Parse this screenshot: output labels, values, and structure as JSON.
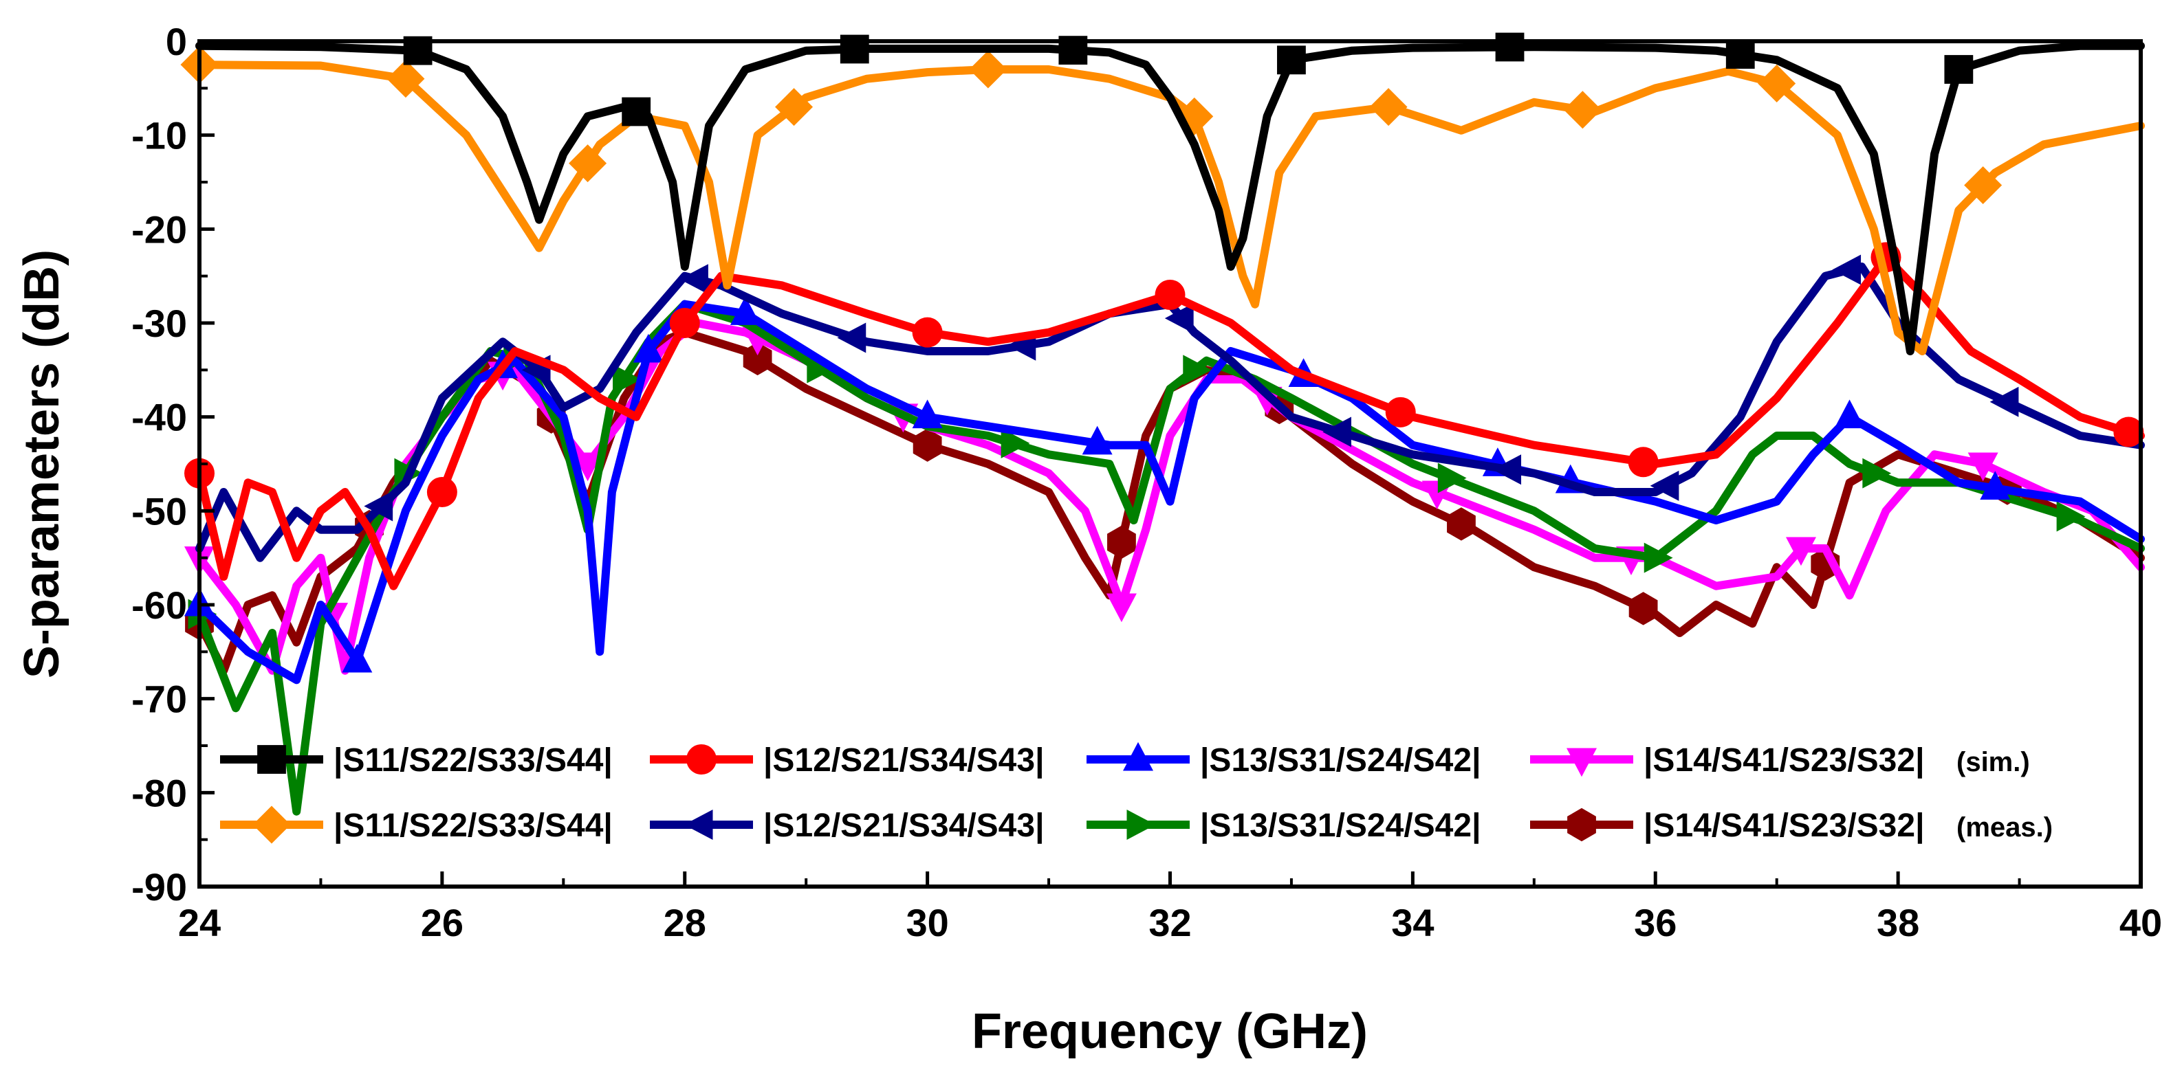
{
  "chart_data": {
    "type": "line",
    "title": "",
    "xlabel": "Frequency (GHz)",
    "ylabel": "S-parameters (dB)",
    "xlim": [
      24,
      40
    ],
    "ylim": [
      -90,
      0
    ],
    "xticks": [
      "24",
      "26",
      "28",
      "30",
      "32",
      "34",
      "36",
      "38",
      "40"
    ],
    "yticks": [
      "0",
      "-10",
      "-20",
      "-30",
      "-40",
      "-50",
      "-60",
      "-70",
      "-80",
      "-90"
    ],
    "legend_position": "bottom-inside",
    "series": [
      {
        "name": "|S11/S22/S33/S44| (sim.)",
        "color": "#000000",
        "marker": "square",
        "x": [
          24,
          25,
          25.8,
          26.2,
          26.5,
          26.7,
          26.8,
          27.0,
          27.2,
          27.5,
          27.7,
          27.9,
          28.0,
          28.2,
          28.5,
          29,
          29.5,
          30,
          30.5,
          31,
          31.5,
          31.8,
          32.0,
          32.2,
          32.4,
          32.5,
          32.6,
          32.8,
          33.0,
          33.5,
          34,
          35,
          36,
          36.5,
          37,
          37.5,
          37.8,
          38.0,
          38.1,
          38.3,
          38.5,
          39,
          39.5,
          40
        ],
        "y": [
          -0.5,
          -0.6,
          -1,
          -3,
          -8,
          -15,
          -19,
          -12,
          -8,
          -7,
          -8,
          -15,
          -24,
          -9,
          -3,
          -1,
          -0.8,
          -0.8,
          -0.8,
          -0.8,
          -1.2,
          -2.5,
          -6,
          -11,
          -18,
          -24,
          -21,
          -8,
          -2,
          -1,
          -0.7,
          -0.6,
          -0.7,
          -1,
          -2,
          -5,
          -12,
          -25,
          -33,
          -12,
          -3,
          -1,
          -0.5,
          -0.5
        ],
        "markers_x": [
          25.8,
          27.6,
          29.4,
          31.2,
          33.0,
          34.8,
          36.7,
          38.5
        ]
      },
      {
        "name": "|S11/S22/S33/S44| (meas.)",
        "color": "#ff8c00",
        "marker": "diamond",
        "x": [
          24,
          25,
          25.7,
          26.2,
          26.6,
          26.8,
          27.0,
          27.3,
          27.6,
          28.0,
          28.2,
          28.35,
          28.6,
          29,
          29.5,
          30,
          30.5,
          31,
          31.5,
          32.0,
          32.2,
          32.4,
          32.6,
          32.7,
          32.9,
          33.2,
          33.8,
          34.4,
          35,
          35.5,
          36,
          36.6,
          37,
          37.5,
          37.8,
          38.0,
          38.2,
          38.5,
          38.8,
          39.2,
          40
        ],
        "y": [
          -2.5,
          -2.6,
          -4,
          -10,
          -18,
          -22,
          -17,
          -11,
          -8,
          -9,
          -15,
          -26,
          -10,
          -6,
          -4,
          -3.3,
          -3,
          -3,
          -4,
          -6,
          -8,
          -15,
          -25,
          -28,
          -14,
          -8,
          -7,
          -9.5,
          -6.5,
          -7.5,
          -5,
          -3.2,
          -4.5,
          -10,
          -20,
          -31,
          -33,
          -18,
          -14,
          -11,
          -9
        ],
        "markers_x": [
          24.0,
          25.7,
          27.2,
          28.9,
          30.5,
          32.2,
          33.8,
          35.4,
          37.0,
          38.7
        ]
      },
      {
        "name": "|S12/S21/S34/S43| (sim.)",
        "color": "#ff0000",
        "marker": "circle",
        "x": [
          24,
          24.2,
          24.4,
          24.6,
          24.8,
          25.0,
          25.2,
          25.4,
          25.6,
          26,
          26.3,
          26.6,
          27.0,
          27.3,
          27.6,
          28.0,
          28.3,
          28.8,
          29.5,
          30,
          30.5,
          31,
          31.5,
          32,
          32.5,
          33,
          34,
          35,
          35.5,
          36,
          36.5,
          37,
          37.5,
          37.9,
          38.2,
          38.6,
          39,
          39.5,
          40
        ],
        "y": [
          -46,
          -57,
          -47,
          -48,
          -55,
          -50,
          -48,
          -52,
          -58,
          -48,
          -38,
          -33,
          -35,
          -38,
          -40,
          -30,
          -25,
          -26,
          -29,
          -31,
          -32,
          -31,
          -29,
          -27,
          -30,
          -35,
          -40,
          -43,
          -44,
          -45,
          -44,
          -38,
          -30,
          -23,
          -27,
          -33,
          -36,
          -40,
          -42
        ],
        "markers_x": [
          24.0,
          26.0,
          28.0,
          30.0,
          32.0,
          33.9,
          35.9,
          37.9,
          39.9
        ]
      },
      {
        "name": "|S12/S21/S34/S43| (meas.)",
        "color": "#00008b",
        "marker": "triangle-left",
        "x": [
          24,
          24.2,
          24.5,
          24.8,
          25.0,
          25.3,
          25.7,
          26.0,
          26.5,
          26.8,
          27.0,
          27.3,
          27.6,
          28.0,
          28.3,
          28.8,
          29.5,
          30,
          30.5,
          31,
          31.5,
          32.0,
          32.2,
          32.5,
          33,
          34,
          35,
          35.5,
          36,
          36.3,
          36.7,
          37,
          37.4,
          37.7,
          38.0,
          38.5,
          39,
          39.5,
          40
        ],
        "y": [
          -54,
          -48,
          -55,
          -50,
          -52,
          -52,
          -47,
          -38,
          -32,
          -35,
          -39,
          -37,
          -31,
          -25,
          -26,
          -29,
          -32,
          -33,
          -33,
          -32,
          -29,
          -28,
          -31,
          -34,
          -40,
          -44,
          -46,
          -48,
          -48,
          -46,
          -40,
          -32,
          -25,
          -24,
          -30,
          -36,
          -39,
          -42,
          -43
        ],
        "markers_x": [
          25.5,
          26.8,
          28.1,
          29.4,
          30.8,
          32.1,
          33.4,
          34.8,
          36.1,
          37.6,
          38.9
        ]
      },
      {
        "name": "|S13/S31/S24/S42| (sim.)",
        "color": "#0000ff",
        "marker": "triangle-up",
        "x": [
          24,
          24.4,
          24.8,
          25.0,
          25.3,
          25.7,
          26.0,
          26.3,
          26.6,
          27.0,
          27.2,
          27.3,
          27.4,
          27.7,
          28.0,
          28.5,
          29,
          29.5,
          30,
          30.5,
          31,
          31.5,
          31.8,
          32.0,
          32.2,
          32.5,
          33,
          33.5,
          34,
          35,
          36,
          36.5,
          37,
          37.3,
          37.6,
          38.0,
          38.5,
          39,
          39.5,
          40
        ],
        "y": [
          -60,
          -65,
          -68,
          -60,
          -66,
          -50,
          -42,
          -36,
          -34,
          -40,
          -50,
          -65,
          -48,
          -33,
          -28,
          -29,
          -33,
          -37,
          -40,
          -41,
          -42,
          -43,
          -43,
          -49,
          -38,
          -33,
          -35,
          -38,
          -43,
          -46,
          -49,
          -51,
          -49,
          -44,
          -40,
          -43,
          -47,
          -48,
          -49,
          -53
        ],
        "markers_x": [
          24.0,
          25.3,
          26.5,
          27.7,
          28.5,
          30.0,
          31.4,
          33.1,
          34.7,
          35.3,
          37.6,
          38.8
        ]
      },
      {
        "name": "|S13/S31/S24/S42| (meas.)",
        "color": "#008000",
        "marker": "triangle-right",
        "x": [
          24,
          24.3,
          24.6,
          24.8,
          25.0,
          25.3,
          25.6,
          26.0,
          26.4,
          26.7,
          27.0,
          27.2,
          27.4,
          27.7,
          28.0,
          28.5,
          29,
          29.5,
          30,
          30.5,
          31,
          31.5,
          31.7,
          32.0,
          32.3,
          32.7,
          33,
          34,
          35,
          35.5,
          36,
          36.5,
          36.8,
          37.0,
          37.3,
          37.6,
          38.0,
          38.5,
          39,
          39.5,
          40
        ],
        "y": [
          -61,
          -71,
          -63,
          -82,
          -62,
          -55,
          -48,
          -40,
          -33,
          -34,
          -42,
          -52,
          -38,
          -32,
          -28,
          -30,
          -34,
          -38,
          -41,
          -42,
          -44,
          -45,
          -51,
          -37,
          -34,
          -36,
          -38,
          -45,
          -50,
          -54,
          -55,
          -50,
          -44,
          -42,
          -42,
          -45,
          -47,
          -47,
          -49,
          -51,
          -54
        ],
        "markers_x": [
          24.0,
          25.7,
          26.6,
          27.5,
          29.1,
          30.7,
          32.2,
          34.3,
          36.0,
          37.8,
          39.4
        ]
      },
      {
        "name": "|S14/S41/S23/S32| (sim.)",
        "color": "#ff00ff",
        "marker": "triangle-down",
        "x": [
          24,
          24.3,
          24.6,
          24.8,
          25.0,
          25.2,
          25.4,
          25.7,
          26.0,
          26.3,
          26.6,
          26.9,
          27.2,
          27.5,
          27.8,
          28.1,
          28.5,
          29,
          29.5,
          30,
          30.5,
          31,
          31.3,
          31.6,
          31.8,
          32.0,
          32.3,
          32.6,
          33,
          34,
          35,
          35.5,
          36,
          36.5,
          37,
          37.2,
          37.4,
          37.6,
          37.9,
          38.3,
          38.7,
          39.2,
          39.6,
          40
        ],
        "y": [
          -55,
          -60,
          -67,
          -58,
          -55,
          -67,
          -55,
          -45,
          -40,
          -36,
          -35,
          -40,
          -45,
          -40,
          -33,
          -30,
          -31,
          -34,
          -38,
          -41,
          -43,
          -46,
          -50,
          -60,
          -52,
          -42,
          -36,
          -36,
          -40,
          -47,
          -52,
          -55,
          -55,
          -58,
          -57,
          -54,
          -54,
          -59,
          -50,
          -44,
          -45,
          -48,
          -50,
          -56
        ],
        "markers_x": [
          24.0,
          25.1,
          26.5,
          27.2,
          28.6,
          29.8,
          31.6,
          32.8,
          34.2,
          35.8,
          37.2,
          38.7
        ]
      },
      {
        "name": "|S14/S41/S23/S32| (meas.)",
        "color": "#8b0000",
        "marker": "hexagon",
        "x": [
          24,
          24.2,
          24.4,
          24.6,
          24.8,
          25.0,
          25.3,
          25.6,
          26.0,
          26.4,
          26.8,
          27.0,
          27.2,
          27.5,
          27.8,
          28.0,
          28.5,
          29,
          29.5,
          30,
          30.5,
          31,
          31.3,
          31.5,
          31.8,
          32.0,
          32.3,
          32.6,
          33,
          33.5,
          34,
          34.5,
          35,
          35.5,
          36,
          36.2,
          36.5,
          36.8,
          37.0,
          37.3,
          37.6,
          38.0,
          38.5,
          39,
          39.5,
          40
        ],
        "y": [
          -62,
          -67,
          -60,
          -59,
          -64,
          -57,
          -54,
          -47,
          -40,
          -34,
          -37,
          -43,
          -49,
          -38,
          -32,
          -31,
          -33,
          -37,
          -40,
          -43,
          -45,
          -48,
          -55,
          -59,
          -42,
          -37,
          -35,
          -36,
          -40,
          -45,
          -49,
          -52,
          -56,
          -58,
          -61,
          -63,
          -60,
          -62,
          -56,
          -60,
          -47,
          -44,
          -46,
          -48,
          -51,
          -55
        ],
        "markers_x": [
          24.0,
          25.4,
          26.9,
          28.6,
          30.0,
          31.6,
          32.9,
          34.4,
          35.9,
          37.4,
          38.9
        ]
      }
    ]
  },
  "legend": [
    {
      "label": "|S11/S22/S33/S44|",
      "note": "",
      "series": 0
    },
    {
      "label": "|S12/S21/S34/S43|",
      "note": "",
      "series": 2
    },
    {
      "label": "|S13/S31/S24/S42|",
      "note": "",
      "series": 4
    },
    {
      "label": "|S14/S41/S23/S32|",
      "note": "(sim.)",
      "series": 6
    },
    {
      "label": "|S11/S22/S33/S44|",
      "note": "",
      "series": 1
    },
    {
      "label": "|S12/S21/S34/S43|",
      "note": "",
      "series": 3
    },
    {
      "label": "|S13/S31/S24/S42|",
      "note": "",
      "series": 5
    },
    {
      "label": "|S14/S41/S23/S32|",
      "note": "(meas.)",
      "series": 7
    }
  ]
}
